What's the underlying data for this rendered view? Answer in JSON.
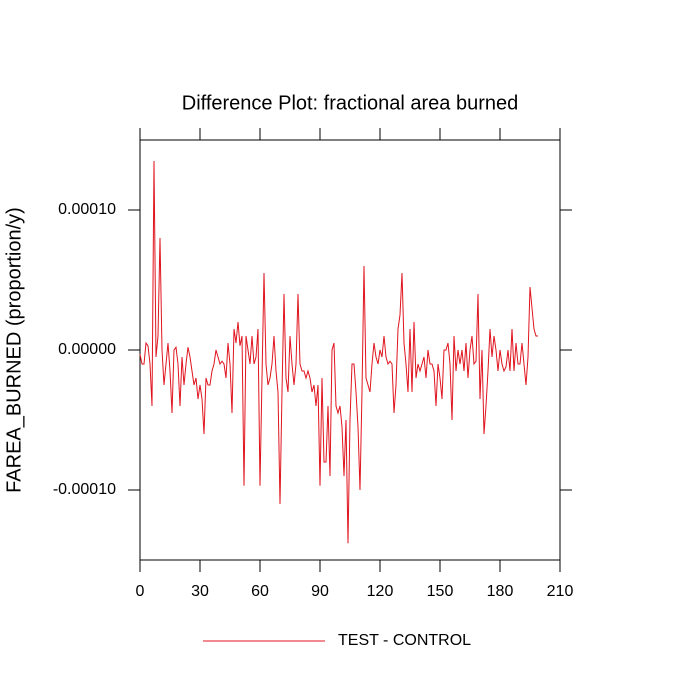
{
  "chart_data": {
    "type": "line",
    "title": "Difference Plot: fractional area burned",
    "ylabel": "FAREA_BURNED  (proportion/y)",
    "xlim": [
      0,
      210
    ],
    "xticks": [
      0,
      30,
      60,
      90,
      120,
      150,
      180,
      210
    ],
    "ylim": [
      -0.00015,
      0.00015
    ],
    "yticks": [
      {
        "value": -0.0001,
        "label": "-0.00010"
      },
      {
        "value": 0,
        "label": "0.00000"
      },
      {
        "value": 0.0001,
        "label": "0.00010"
      }
    ],
    "x": [
      0,
      1,
      2,
      3,
      4,
      5,
      6,
      7,
      8,
      9,
      10,
      11,
      12,
      13,
      14,
      15,
      16,
      17,
      18,
      19,
      20,
      21,
      22,
      23,
      24,
      25,
      26,
      27,
      28,
      29,
      30,
      31,
      32,
      33,
      34,
      35,
      36,
      37,
      38,
      39,
      40,
      41,
      42,
      43,
      44,
      45,
      46,
      47,
      48,
      49,
      50,
      51,
      52,
      53,
      54,
      55,
      56,
      57,
      58,
      59,
      60,
      61,
      62,
      63,
      64,
      65,
      66,
      67,
      68,
      69,
      70,
      71,
      72,
      73,
      74,
      75,
      76,
      77,
      78,
      79,
      80,
      81,
      82,
      83,
      84,
      85,
      86,
      87,
      88,
      89,
      90,
      91,
      92,
      93,
      94,
      95,
      96,
      97,
      98,
      99,
      100,
      101,
      102,
      103,
      104,
      105,
      106,
      107,
      108,
      109,
      110,
      111,
      112,
      113,
      114,
      115,
      116,
      117,
      118,
      119,
      120,
      121,
      122,
      123,
      124,
      125,
      126,
      127,
      128,
      129,
      130,
      131,
      132,
      133,
      134,
      135,
      136,
      137,
      138,
      139,
      140,
      141,
      142,
      143,
      144,
      145,
      146,
      147,
      148,
      149,
      150,
      151,
      152,
      153,
      154,
      155,
      156,
      157,
      158,
      159,
      160,
      161,
      162,
      163,
      164,
      165,
      166,
      167,
      168,
      169,
      170,
      171,
      172,
      173,
      174,
      175,
      176,
      177,
      178,
      179,
      180,
      181,
      182,
      183,
      184,
      185,
      186,
      187,
      188,
      189,
      190,
      191,
      192,
      193,
      194,
      195,
      196,
      197,
      198,
      199
    ],
    "series": [
      {
        "name": "TEST - CONTROL",
        "color": "#e0141e",
        "values": [
          -3e-06,
          -1e-05,
          -1e-05,
          5e-06,
          3e-06,
          -1e-05,
          -4e-05,
          0.000135,
          -5e-06,
          1e-05,
          8e-05,
          0,
          -2.5e-05,
          -1e-05,
          5e-06,
          -1.5e-05,
          -4.5e-05,
          0,
          2e-06,
          -1e-05,
          -4e-05,
          -5e-06,
          -2.5e-05,
          -1e-05,
          2e-06,
          -5e-06,
          -1.5e-05,
          -2.5e-05,
          -2e-05,
          -3.5e-05,
          -2.5e-05,
          -3.5e-05,
          -6e-05,
          -2e-05,
          -2.5e-05,
          -2.5e-05,
          -1.5e-05,
          -1e-05,
          0,
          -5e-06,
          -1e-05,
          -8e-06,
          -1e-05,
          -2e-05,
          5e-06,
          -1e-05,
          -4.5e-05,
          1.5e-05,
          5e-06,
          2e-05,
          3e-06,
          1e-05,
          -9.7e-05,
          1e-05,
          0,
          -1e-05,
          1e-05,
          -1e-05,
          -5e-06,
          1.5e-05,
          -9.7e-05,
          -2e-05,
          5.5e-05,
          -1e-05,
          -2.5e-05,
          -2e-05,
          -1e-05,
          1e-05,
          -1.5e-05,
          -3e-05,
          -0.00011,
          -3e-05,
          4e-05,
          -2e-05,
          -3e-05,
          1e-05,
          -1e-05,
          -2.5e-05,
          -1e-05,
          4e-05,
          -1e-05,
          -1.5e-05,
          -1.5e-05,
          -2e-05,
          -1.5e-05,
          -2e-05,
          -3e-05,
          -2.5e-05,
          -4e-05,
          -2.5e-05,
          -9.7e-05,
          -2e-05,
          -8e-05,
          -8e-05,
          -4e-05,
          -9e-05,
          0,
          5e-06,
          -4e-05,
          -4.5e-05,
          -4e-05,
          -5.5e-05,
          -9e-05,
          -5e-05,
          -0.000138,
          -5e-05,
          -1e-05,
          -1e-05,
          -3e-05,
          -5.5e-05,
          -0.0001,
          -3e-05,
          6e-05,
          -2e-05,
          -2.5e-05,
          -3e-05,
          -1e-05,
          5e-06,
          -5e-06,
          -1e-05,
          0,
          -5e-06,
          1e-05,
          -5e-06,
          -1e-05,
          -8e-06,
          -1e-05,
          -4.5e-05,
          -2.5e-05,
          1.5e-05,
          2.5e-05,
          5.5e-05,
          5e-06,
          -1e-05,
          -3e-05,
          1.5e-05,
          -3e-05,
          2e-05,
          -2e-05,
          -1e-05,
          -1.5e-05,
          -1e-05,
          -5e-06,
          -2e-05,
          0,
          -1e-05,
          -1e-05,
          -1.5e-05,
          -4e-05,
          -1e-05,
          -2e-05,
          -3.5e-05,
          0,
          0,
          5e-06,
          -1e-05,
          -5e-05,
          1e-05,
          -1.5e-05,
          0,
          -1e-05,
          0,
          -1.5e-05,
          5e-06,
          -2e-05,
          0,
          1e-05,
          -1e-05,
          -8e-06,
          4e-05,
          -3.5e-05,
          0,
          -6e-05,
          -4e-05,
          -1.5e-05,
          1.5e-05,
          -5e-06,
          1e-05,
          0,
          -1.5e-05,
          0,
          -1e-05,
          -1.5e-05,
          -1.2e-05,
          0,
          -1.5e-05,
          1.5e-05,
          -1.5e-05,
          5e-06,
          -1e-05,
          -1e-05,
          5e-06,
          -1e-05,
          -2.5e-05,
          -5e-06,
          4.5e-05,
          3e-05,
          1.5e-05,
          1e-05,
          1e-05
        ]
      }
    ]
  }
}
